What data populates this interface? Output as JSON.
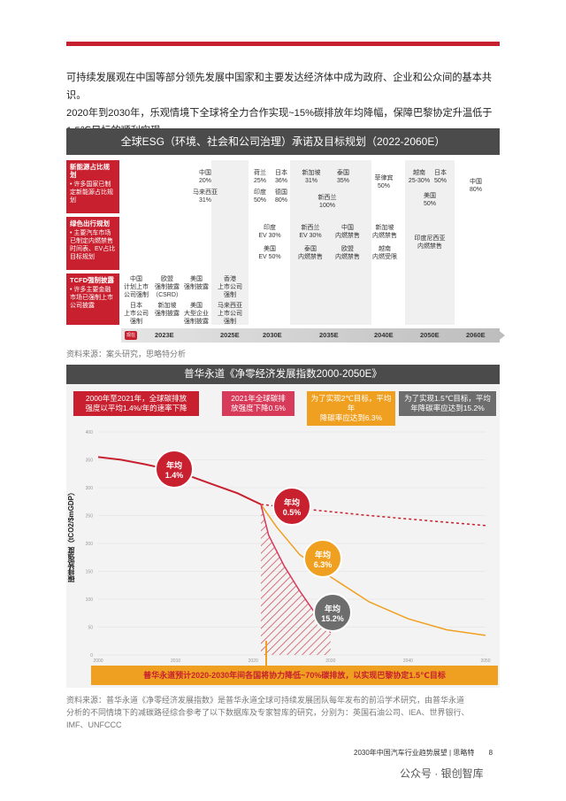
{
  "intro": {
    "line1": "可持续发展观在中国等部分领先发展中国家和主要发达经济体中成为政府、企业和公众间的基本共识。",
    "line2": "2020年到2030年，乐观情境下全球将全力合作实现~15%碳排放年均降幅，保障巴黎协定升温低于",
    "line3": "1.5℃目标的顺利实现。"
  },
  "esg": {
    "title": "全球ESG（环境、社会和公司治理）承诺及目标规划（2022-2060E）",
    "rows": [
      {
        "title": "新能源占比规划",
        "desc": "• 许多国家已制定新能源占比规划"
      },
      {
        "title": "绿色出行规划",
        "desc": "• 主要汽车市场已制定内燃禁售时间表、EV占比目标规划"
      },
      {
        "title": "TCFD强制披露",
        "desc": "• 许多主要金融市场已强制上市公司披露"
      }
    ],
    "cells": {
      "r1_2025": [
        "中国",
        "20%",
        "马来西亚",
        "31%"
      ],
      "r1_2030a": [
        "荷兰",
        "25%",
        "印度",
        "50%"
      ],
      "r1_2030b": [
        "日本",
        "36%",
        "德国",
        "80%"
      ],
      "r1_2035a": [
        "新加坡",
        "31%"
      ],
      "r1_2035b": [
        "泰国",
        "35%"
      ],
      "r1_2035c": [
        "新西兰",
        "100%"
      ],
      "r1_2040": [
        "菲律宾",
        "50%"
      ],
      "r1_2050a": [
        "越南",
        "25-30%"
      ],
      "r1_2050b": [
        "日本",
        "50%",
        "美国",
        "50%"
      ],
      "r1_2060": [
        "中国",
        "80%"
      ],
      "r2_2030": [
        "印度",
        "EV 30%",
        "美国",
        "EV 50%"
      ],
      "r2_2035a": [
        "新西兰",
        "EV 30%",
        "泰国",
        "内燃禁售"
      ],
      "r2_2035b": [
        "中国",
        "内燃禁售",
        "欧盟",
        "内燃禁售"
      ],
      "r2_2040": [
        "新加坡",
        "内燃禁售",
        "越南",
        "内燃受限"
      ],
      "r2_2050": [
        "印度尼西亚",
        "内燃禁售"
      ],
      "r3_2023a": [
        "中国",
        "计划上市",
        "公司强制",
        "日本",
        "上市公司",
        "强制"
      ],
      "r3_2023b": [
        "欧盟",
        "强制披露",
        "（CSRD）",
        "新加坡",
        "强制披露"
      ],
      "r3_2023c": [
        "美国",
        "强制披露",
        "美国",
        "大型企业",
        "强制披露"
      ],
      "r3_2025": [
        "香港",
        "上市公司",
        "强制",
        "马来西亚",
        "上市公司",
        "强制"
      ]
    },
    "now_label": "现在",
    "timeline": [
      "2023E",
      "2025E",
      "2030E",
      "2035E",
      "2040E",
      "2050E",
      "2060E"
    ]
  },
  "source1": "资料来源：案头研究，思略特分析",
  "chart": {
    "title": "普华永道《净零经济发展指数2000-2050E》",
    "boxes": [
      {
        "text1": "2000年至2021年，全球碳排放",
        "text2": "强度以平均1.4%/年的速率下降"
      },
      {
        "text1": "2021年全球碳排",
        "text2": "放强度下降0.5%"
      },
      {
        "text1": "为了实现2℃目标，平均年",
        "text2": "降碳率应达到6.3%"
      },
      {
        "text1": "为了实现1.5℃目标，平均",
        "text2": "年降碳率应达到15.2%"
      }
    ],
    "bubbles": [
      {
        "l1": "年均",
        "l2": "1.4%"
      },
      {
        "l1": "年均",
        "l2": "0.5%"
      },
      {
        "l1": "年均",
        "l2": "6.3%"
      },
      {
        "l1": "年均",
        "l2": "15.2%"
      }
    ],
    "ylabel": "碳排放强度（tCO2/$mGDP）",
    "bottom_note": "普华永道预计2020-2030年间各国将协力降低~70%碳排放，以实现巴黎协定1.5℃目标",
    "colors": {
      "red": "#c8202f",
      "orange": "#f0a020",
      "grey": "#6d6d6d",
      "pink": "#d83a5a"
    }
  },
  "chart_data": {
    "type": "line",
    "title": "普华永道《净零经济发展指数2000-2050E》",
    "ylabel": "碳排放强度（tCO2/$mGDP）",
    "xlabel": "",
    "x_ticks": [
      2000,
      2010,
      2020,
      2030,
      2040,
      2050
    ],
    "y_ticks": [
      0,
      50,
      100,
      150,
      200,
      250,
      300,
      350,
      400
    ],
    "xlim": [
      2000,
      2050
    ],
    "ylim": [
      0,
      400
    ],
    "series": [
      {
        "x": [
          2000,
          2003,
          2006,
          2009,
          2012,
          2015,
          2018,
          2021
        ],
        "values": [
          355,
          350,
          342,
          333,
          320,
          305,
          290,
          270
        ]
      },
      {
        "x": [
          2021,
          2025,
          2030,
          2035,
          2040,
          2045,
          2050
        ],
        "values": [
          270,
          264,
          257,
          250,
          244,
          238,
          232
        ]
      },
      {
        "x": [
          2021,
          2023,
          2026,
          2030,
          2035,
          2040,
          2045,
          2050
        ],
        "values": [
          270,
          230,
          180,
          140,
          95,
          65,
          45,
          35
        ]
      },
      {
        "x": [
          2021,
          2022,
          2024,
          2026,
          2028,
          2030
        ],
        "values": [
          270,
          215,
          160,
          115,
          75,
          40
        ]
      }
    ]
  },
  "source2": {
    "line1": "资料来源：普华永道《净零经济发展指数》是普华永道全球可持续发展团队每年发布的前沿学术研究，由普华永道",
    "line2": "分析的不同情境下的减碳路径综合参考了以下数据库及专家智库的研究，分别为：英国石油公司、IEA、世界银行、",
    "line3": "IMF、UNFCCC"
  },
  "footer": {
    "text": "2030年中国汽车行业趋势展望 | 思略特",
    "page": "8"
  },
  "watermark": "公众号 · 银创智库"
}
